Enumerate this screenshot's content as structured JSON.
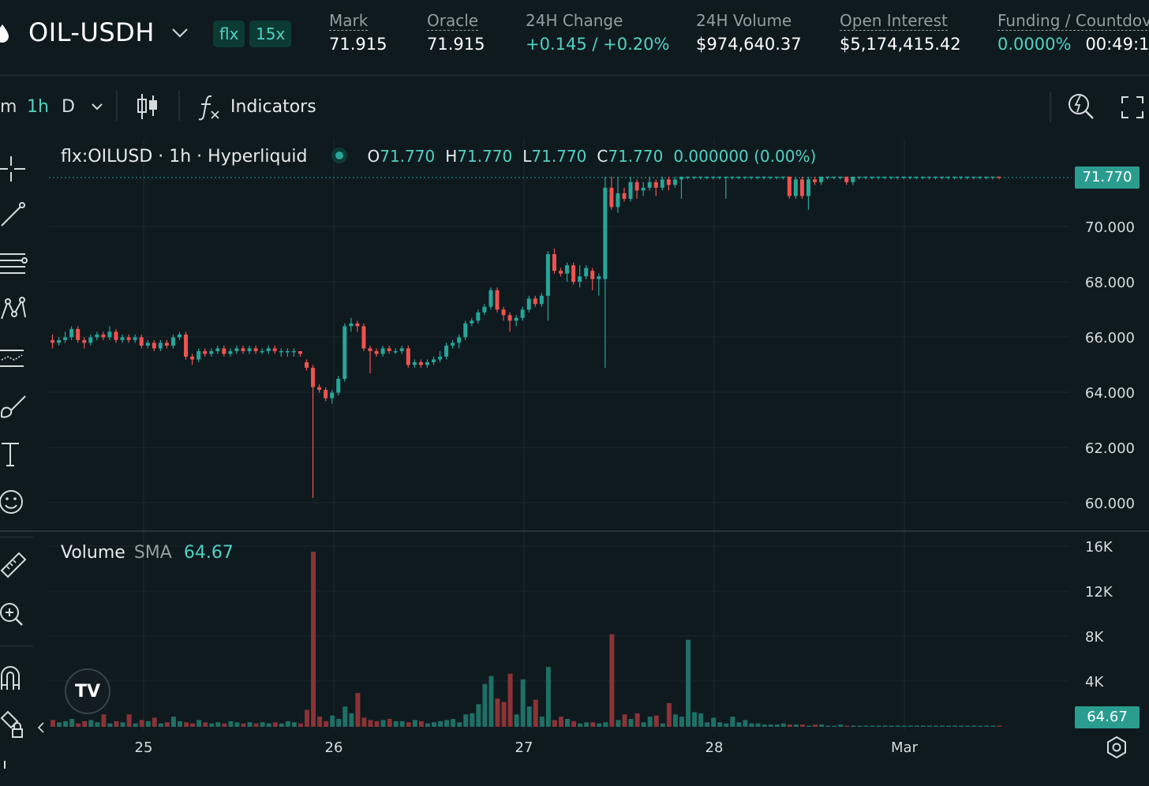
{
  "header": {
    "market": "OIL-USDH",
    "badges": [
      "flx",
      "15x"
    ],
    "stats": {
      "mark": {
        "label": "Mark",
        "value": "71.915"
      },
      "oracle": {
        "label": "Oracle",
        "value": "71.915"
      },
      "change": {
        "label": "24H Change",
        "value": "+0.145 / +0.20%"
      },
      "volume": {
        "label": "24H Volume",
        "value": "$974,640.37"
      },
      "open_interest": {
        "label": "Open Interest",
        "value": "$5,174,415.42"
      },
      "funding": {
        "label": "Funding / Countdov",
        "rate": "0.0000%",
        "countdown": "00:49:1"
      }
    }
  },
  "toolbar": {
    "intervals": [
      "m",
      "1h",
      "D"
    ],
    "active_interval": "1h",
    "indicators_label": "Indicators"
  },
  "legend": {
    "symbol": "flx:OILUSD · 1h · Hyperliquid",
    "o_label": "O",
    "o": "71.770",
    "h_label": "H",
    "h": "71.770",
    "l_label": "L",
    "l": "71.770",
    "c_label": "C",
    "c": "71.770",
    "change": "0.000000 (0.00%)"
  },
  "volume_legend": {
    "label": "Volume",
    "sma_label": "SMA",
    "sma_value": "64.67"
  },
  "last_price_tag": "71.770",
  "volume_tag": "64.67",
  "logo_text": "TV",
  "colors": {
    "up": "#26a69a",
    "down": "#ef5350",
    "up_vol": "#1f6f65",
    "down_vol": "#8b3336",
    "accent": "#50d2c1"
  },
  "chart_data": {
    "type": "candlestick",
    "price_axis_ticks": [
      "70.000",
      "68.000",
      "66.000",
      "64.000",
      "62.000",
      "60.000"
    ],
    "volume_axis_ticks": [
      "16K",
      "12K",
      "8K",
      "4K"
    ],
    "x_tick_labels": [
      "25",
      "26",
      "27",
      "28",
      "Mar"
    ],
    "price_range": [
      59.5,
      72.5
    ],
    "volume_range": [
      0,
      16000
    ],
    "candles": [
      [
        65.9,
        65.8,
        66.1,
        65.6
      ],
      [
        65.8,
        65.9,
        66.0,
        65.7
      ],
      [
        65.9,
        66.0,
        66.2,
        65.8
      ],
      [
        66.0,
        66.3,
        66.4,
        65.9
      ],
      [
        66.3,
        65.9,
        66.4,
        65.8
      ],
      [
        65.9,
        65.8,
        66.0,
        65.6
      ],
      [
        65.8,
        66.0,
        66.1,
        65.7
      ],
      [
        66.0,
        66.1,
        66.2,
        65.9
      ],
      [
        66.1,
        66.0,
        66.2,
        65.9
      ],
      [
        66.0,
        66.2,
        66.4,
        65.9
      ],
      [
        66.2,
        65.9,
        66.3,
        65.8
      ],
      [
        65.9,
        66.0,
        66.1,
        65.8
      ],
      [
        66.0,
        65.9,
        66.1,
        65.8
      ],
      [
        65.9,
        66.0,
        66.1,
        65.8
      ],
      [
        66.0,
        65.7,
        66.1,
        65.6
      ],
      [
        65.7,
        65.8,
        65.9,
        65.6
      ],
      [
        65.8,
        65.6,
        65.9,
        65.5
      ],
      [
        65.6,
        65.8,
        65.9,
        65.5
      ],
      [
        65.8,
        65.7,
        65.9,
        65.6
      ],
      [
        65.7,
        66.0,
        66.1,
        65.6
      ],
      [
        66.0,
        66.1,
        66.2,
        65.9
      ],
      [
        66.1,
        65.3,
        66.2,
        65.2
      ],
      [
        65.3,
        65.2,
        65.4,
        65.0
      ],
      [
        65.2,
        65.5,
        65.6,
        65.1
      ],
      [
        65.5,
        65.4,
        65.6,
        65.3
      ],
      [
        65.4,
        65.5,
        65.6,
        65.3
      ],
      [
        65.5,
        65.6,
        65.7,
        65.4
      ],
      [
        65.6,
        65.4,
        65.7,
        65.3
      ],
      [
        65.4,
        65.5,
        65.6,
        65.3
      ],
      [
        65.5,
        65.6,
        65.7,
        65.4
      ],
      [
        65.6,
        65.5,
        65.7,
        65.4
      ],
      [
        65.5,
        65.6,
        65.7,
        65.4
      ],
      [
        65.6,
        65.5,
        65.7,
        65.4
      ],
      [
        65.5,
        65.5,
        65.6,
        65.4
      ],
      [
        65.5,
        65.6,
        65.7,
        65.4
      ],
      [
        65.6,
        65.5,
        65.7,
        65.4
      ],
      [
        65.5,
        65.5,
        65.6,
        65.3
      ],
      [
        65.5,
        65.5,
        65.6,
        65.3
      ],
      [
        65.5,
        65.5,
        65.6,
        65.3
      ],
      [
        65.5,
        65.4,
        65.5,
        65.3
      ],
      [
        65.1,
        64.9,
        65.2,
        64.8
      ],
      [
        64.9,
        64.2,
        65.0,
        60.2
      ],
      [
        64.2,
        64.1,
        64.3,
        64.0
      ],
      [
        64.1,
        63.8,
        64.2,
        63.7
      ],
      [
        63.8,
        64.0,
        64.1,
        63.6
      ],
      [
        64.0,
        64.5,
        64.6,
        63.9
      ],
      [
        64.5,
        66.4,
        66.5,
        64.4
      ],
      [
        66.4,
        66.5,
        66.7,
        66.2
      ],
      [
        66.5,
        66.4,
        66.6,
        66.2
      ],
      [
        66.4,
        65.6,
        66.5,
        65.5
      ],
      [
        65.6,
        65.5,
        65.7,
        64.7
      ],
      [
        65.5,
        65.4,
        65.6,
        65.3
      ],
      [
        65.4,
        65.6,
        65.7,
        65.3
      ],
      [
        65.6,
        65.5,
        65.7,
        65.4
      ],
      [
        65.5,
        65.5,
        65.6,
        65.4
      ],
      [
        65.5,
        65.6,
        65.7,
        65.4
      ],
      [
        65.6,
        65.0,
        65.7,
        64.9
      ],
      [
        65.0,
        65.1,
        65.2,
        64.9
      ],
      [
        65.1,
        65.0,
        65.2,
        64.9
      ],
      [
        65.0,
        65.1,
        65.2,
        64.9
      ],
      [
        65.1,
        65.2,
        65.3,
        65.0
      ],
      [
        65.2,
        65.3,
        65.5,
        65.1
      ],
      [
        65.3,
        65.7,
        65.8,
        65.2
      ],
      [
        65.7,
        65.8,
        65.9,
        65.6
      ],
      [
        65.8,
        66.0,
        66.1,
        65.6
      ],
      [
        66.0,
        66.5,
        66.6,
        65.9
      ],
      [
        66.5,
        66.6,
        66.7,
        66.4
      ],
      [
        66.6,
        66.9,
        67.0,
        66.5
      ],
      [
        66.9,
        67.1,
        67.2,
        66.8
      ],
      [
        67.1,
        67.7,
        67.8,
        67.0
      ],
      [
        67.7,
        67.0,
        67.8,
        66.9
      ],
      [
        67.0,
        66.8,
        67.1,
        66.6
      ],
      [
        66.8,
        66.6,
        66.9,
        66.2
      ],
      [
        66.6,
        66.7,
        66.8,
        66.4
      ],
      [
        66.7,
        67.0,
        67.1,
        66.6
      ],
      [
        67.0,
        67.4,
        67.5,
        66.9
      ],
      [
        67.4,
        67.2,
        67.5,
        67.1
      ],
      [
        67.2,
        67.5,
        67.6,
        67.1
      ],
      [
        67.5,
        69.0,
        69.1,
        66.6
      ],
      [
        69.0,
        68.4,
        69.2,
        68.3
      ],
      [
        68.4,
        68.3,
        68.5,
        68.2
      ],
      [
        68.3,
        68.6,
        68.7,
        68.0
      ],
      [
        68.6,
        68.0,
        68.7,
        67.9
      ],
      [
        68.0,
        68.2,
        68.6,
        67.8
      ],
      [
        68.2,
        68.5,
        68.6,
        68.1
      ],
      [
        68.4,
        68.1,
        68.5,
        67.7
      ],
      [
        68.1,
        68.2,
        68.3,
        67.5
      ],
      [
        68.1,
        71.4,
        71.8,
        64.9
      ],
      [
        71.4,
        70.7,
        71.8,
        70.6
      ],
      [
        70.7,
        71.2,
        71.8,
        70.5
      ],
      [
        71.2,
        71.0,
        71.4,
        70.9
      ],
      [
        71.0,
        71.6,
        71.8,
        70.9
      ],
      [
        71.6,
        71.3,
        71.7,
        71.0
      ],
      [
        71.3,
        71.4,
        71.6,
        71.1
      ],
      [
        71.4,
        71.6,
        71.8,
        71.3
      ],
      [
        71.6,
        71.4,
        71.7,
        71.1
      ],
      [
        71.4,
        71.7,
        71.8,
        71.3
      ],
      [
        71.7,
        71.5,
        71.8,
        71.3
      ],
      [
        71.5,
        71.7,
        71.8,
        71.4
      ],
      [
        71.7,
        71.8,
        71.8,
        71.0
      ],
      [
        71.8,
        71.8,
        71.8,
        71.7
      ],
      [
        71.8,
        71.8,
        71.8,
        71.7
      ],
      [
        71.8,
        71.8,
        71.8,
        71.7
      ],
      [
        71.8,
        71.8,
        71.8,
        71.7
      ],
      [
        71.8,
        71.8,
        71.8,
        71.7
      ],
      [
        71.8,
        71.8,
        71.8,
        71.7
      ],
      [
        71.8,
        71.8,
        71.8,
        71.0
      ],
      [
        71.8,
        71.8,
        71.8,
        71.7
      ],
      [
        71.8,
        71.8,
        71.8,
        71.7
      ],
      [
        71.8,
        71.8,
        71.8,
        71.7
      ],
      [
        71.8,
        71.8,
        71.8,
        71.7
      ],
      [
        71.8,
        71.8,
        71.8,
        71.7
      ],
      [
        71.8,
        71.8,
        71.8,
        71.7
      ],
      [
        71.8,
        71.8,
        71.8,
        71.7
      ],
      [
        71.8,
        71.8,
        71.8,
        71.7
      ],
      [
        71.8,
        71.8,
        71.8,
        71.7
      ],
      [
        71.8,
        71.1,
        71.8,
        71.0
      ],
      [
        71.1,
        71.7,
        71.8,
        71.0
      ],
      [
        71.7,
        71.1,
        71.8,
        71.0
      ],
      [
        71.1,
        71.7,
        71.8,
        70.6
      ],
      [
        71.7,
        71.6,
        71.8,
        71.5
      ],
      [
        71.6,
        71.8,
        71.8,
        71.5
      ],
      [
        71.8,
        71.8,
        71.8,
        71.7
      ],
      [
        71.8,
        71.8,
        71.8,
        71.7
      ],
      [
        71.8,
        71.8,
        71.8,
        71.7
      ],
      [
        71.8,
        71.6,
        71.8,
        71.5
      ],
      [
        71.6,
        71.8,
        71.8,
        71.5
      ],
      [
        71.8,
        71.8,
        71.8,
        71.7
      ],
      [
        71.8,
        71.8,
        71.8,
        71.7
      ],
      [
        71.8,
        71.8,
        71.8,
        71.7
      ],
      [
        71.8,
        71.8,
        71.8,
        71.7
      ],
      [
        71.8,
        71.8,
        71.8,
        71.7
      ],
      [
        71.8,
        71.8,
        71.8,
        71.7
      ],
      [
        71.8,
        71.8,
        71.8,
        71.7
      ],
      [
        71.8,
        71.8,
        71.8,
        71.7
      ],
      [
        71.8,
        71.8,
        71.8,
        71.7
      ],
      [
        71.8,
        71.8,
        71.8,
        71.7
      ],
      [
        71.8,
        71.8,
        71.8,
        71.7
      ],
      [
        71.8,
        71.8,
        71.8,
        71.7
      ],
      [
        71.8,
        71.8,
        71.8,
        71.7
      ],
      [
        71.8,
        71.8,
        71.8,
        71.7
      ],
      [
        71.8,
        71.8,
        71.8,
        71.7
      ],
      [
        71.8,
        71.8,
        71.8,
        71.7
      ],
      [
        71.8,
        71.8,
        71.8,
        71.7
      ],
      [
        71.8,
        71.8,
        71.8,
        71.7
      ],
      [
        71.8,
        71.8,
        71.8,
        71.7
      ],
      [
        71.8,
        71.8,
        71.8,
        71.7
      ],
      [
        71.8,
        71.8,
        71.8,
        71.7
      ],
      [
        71.8,
        71.8,
        71.8,
        71.7
      ],
      [
        71.8,
        71.77,
        71.8,
        71.7
      ]
    ],
    "volumes": [
      600,
      400,
      500,
      700,
      300,
      500,
      600,
      400,
      1100,
      300,
      500,
      400,
      1100,
      300,
      600,
      500,
      800,
      300,
      400,
      900,
      500,
      400,
      300,
      600,
      400,
      300,
      400,
      300,
      500,
      400,
      300,
      400,
      300,
      400,
      300,
      400,
      300,
      500,
      400,
      300,
      1500,
      15500,
      900,
      500,
      1000,
      700,
      1800,
      1200,
      3000,
      800,
      600,
      500,
      600,
      700,
      500,
      500,
      400,
      600,
      500,
      300,
      400,
      500,
      600,
      700,
      400,
      1100,
      1200,
      2000,
      3800,
      4500,
      2500,
      2200,
      4700,
      1100,
      4200,
      1800,
      2400,
      900,
      5300,
      600,
      900,
      700,
      500,
      300,
      400,
      400,
      300,
      400,
      8200,
      600,
      1100,
      700,
      1200,
      400,
      900,
      1000,
      300,
      2100,
      1100,
      900,
      7700,
      1300,
      1200,
      400,
      800,
      400,
      300,
      900,
      400,
      600,
      300,
      300,
      200,
      200,
      200,
      300,
      200,
      200,
      200,
      100,
      200,
      200,
      100,
      100,
      200,
      100,
      100,
      100,
      100,
      100,
      100,
      100,
      100,
      100,
      100,
      100,
      100,
      100,
      100,
      100,
      100,
      100,
      100,
      100,
      100,
      100,
      100,
      100,
      100,
      100
    ]
  }
}
